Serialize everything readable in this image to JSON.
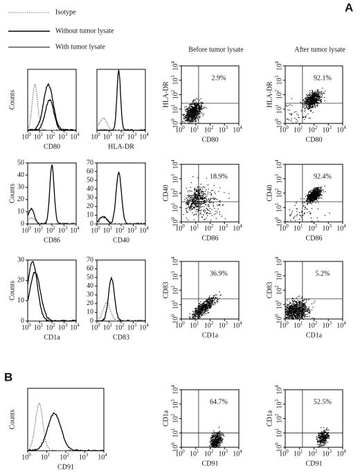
{
  "panel_a": {
    "label": "A",
    "legend": [
      "Isotype",
      "Without tumor lysate",
      "With tumor lysate"
    ],
    "column_titles": [
      "Before  tumor lysate",
      "After tumor lysate"
    ],
    "histograms": [
      {
        "x_label": "CD80",
        "y_label": "Counts"
      },
      {
        "x_label": "HLA-DR"
      },
      {
        "x_label": "CD86",
        "y_label": "Counts",
        "y_ticks": [
          0,
          10,
          20,
          30,
          40,
          50
        ]
      },
      {
        "x_label": "CD40",
        "y_ticks": [
          0,
          10,
          20,
          30,
          40,
          50,
          60,
          70
        ]
      },
      {
        "x_label": "CD1a",
        "y_label": "Counts",
        "y_ticks": [
          0,
          10,
          20,
          30
        ]
      },
      {
        "x_label": "CD83",
        "y_ticks": [
          0,
          10,
          20,
          30,
          40,
          50,
          60,
          70
        ]
      }
    ],
    "scatters": [
      {
        "x_label": "CD80",
        "y_label": "HLA-DR",
        "percent": "2.9%"
      },
      {
        "x_label": "CD80",
        "y_label": "HLA-DR",
        "percent": "92.1%"
      },
      {
        "x_label": "CD86",
        "y_label": "CD40",
        "percent": "18.9%"
      },
      {
        "x_label": "CD86",
        "y_label": "CD40",
        "percent": "92.4%"
      },
      {
        "x_label": "CD1a",
        "y_label": "CD83",
        "percent": "36.9%"
      },
      {
        "x_label": "CD1a",
        "y_label": "CD83",
        "percent": "5.2%"
      }
    ]
  },
  "panel_b": {
    "label": "B",
    "histogram": {
      "x_label": "CD91",
      "y_label": "Counts"
    },
    "scatters": [
      {
        "x_label": "CD91",
        "y_label": "CD1a",
        "percent": "64.7%"
      },
      {
        "x_label": "CD91",
        "y_label": "CD1a",
        "percent": "52.5%"
      }
    ]
  },
  "log_base": "10",
  "log_exponents": [
    "0",
    "1",
    "2",
    "3",
    "4"
  ]
}
